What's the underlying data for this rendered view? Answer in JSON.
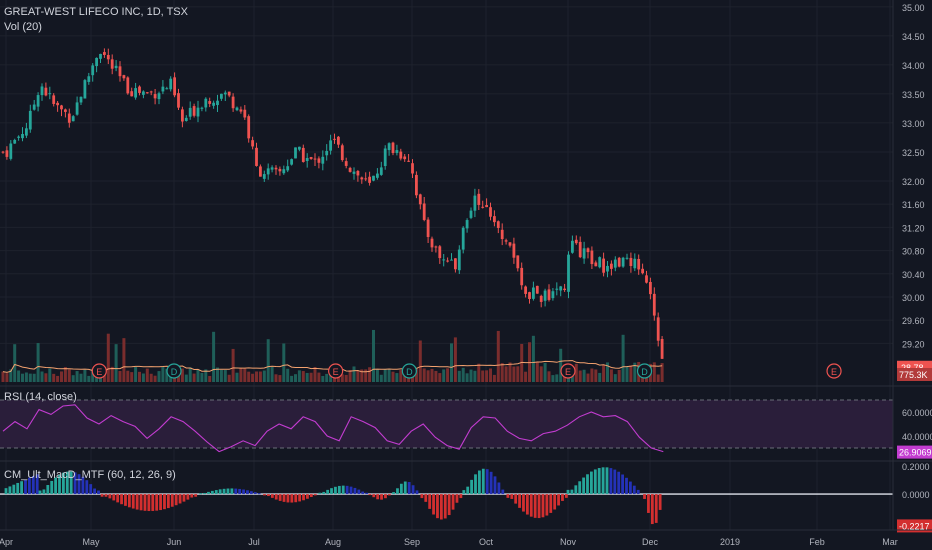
{
  "header": {
    "symbol_line": "GREAT-WEST LIFECO INC, 1D, TSX",
    "volume_label": "Vol (20)",
    "rsi_label": "RSI (14, close)",
    "macd_label": "CM_Ult_MacD_MTF (60, 12, 26, 9)"
  },
  "colors": {
    "background": "#131722",
    "up": "#26a69a",
    "down": "#ef5350",
    "rsi_line": "#c23cd0",
    "rsi_band": "#2a1e3a",
    "macd_up": "#26a69a",
    "macd_blue": "#2432b8",
    "macd_down": "#d32f2f",
    "vol_ma": "#f4a26f"
  },
  "chart_data": [
    {
      "type": "candlestick",
      "title": "GREAT-WEST LIFECO INC, 1D, TSX",
      "x_ticks": [
        "Apr",
        "May",
        "Jun",
        "Jul",
        "Aug",
        "Sep",
        "Oct",
        "Nov",
        "Dec",
        "2019",
        "Feb",
        "Mar"
      ],
      "y_ticks": [
        "35.00",
        "34.50",
        "34.00",
        "33.50",
        "33.00",
        "32.50",
        "32.00",
        "31.60",
        "31.20",
        "30.80",
        "30.40",
        "30.00",
        "29.60",
        "29.20"
      ],
      "ylim": [
        28.5,
        35.05
      ],
      "last_price": "28.78",
      "last_volume": "775.3K",
      "close_path": [
        {
          "date": "Apr 1",
          "close": 32.5
        },
        {
          "date": "Apr 9",
          "close": 33.0
        },
        {
          "date": "Apr 13",
          "close": 33.7
        },
        {
          "date": "Apr 18",
          "close": 33.3
        },
        {
          "date": "Apr 24",
          "close": 33.1
        },
        {
          "date": "Apr 30",
          "close": 33.8
        },
        {
          "date": "May 4",
          "close": 34.3
        },
        {
          "date": "May 8",
          "close": 34.0
        },
        {
          "date": "May 14",
          "close": 33.6
        },
        {
          "date": "May 22",
          "close": 33.5
        },
        {
          "date": "May 30",
          "close": 33.65
        },
        {
          "date": "Jun 4",
          "close": 33.0
        },
        {
          "date": "Jun 12",
          "close": 33.4
        },
        {
          "date": "Jun 20",
          "close": 33.5
        },
        {
          "date": "Jun 27",
          "close": 33.2
        },
        {
          "date": "Jul 2",
          "close": 32.2
        },
        {
          "date": "Jul 10",
          "close": 32.1
        },
        {
          "date": "Jul 17",
          "close": 32.5
        },
        {
          "date": "Jul 24",
          "close": 32.3
        },
        {
          "date": "Jul 31",
          "close": 32.7
        },
        {
          "date": "Aug 8",
          "close": 32.2
        },
        {
          "date": "Aug 15",
          "close": 31.9
        },
        {
          "date": "Aug 22",
          "close": 32.6
        },
        {
          "date": "Aug 30",
          "close": 32.4
        },
        {
          "date": "Sep 6",
          "close": 31.2
        },
        {
          "date": "Sep 12",
          "close": 30.7
        },
        {
          "date": "Sep 18",
          "close": 30.5
        },
        {
          "date": "Sep 24",
          "close": 31.5
        },
        {
          "date": "Sep 28",
          "close": 31.7
        },
        {
          "date": "Oct 4",
          "close": 31.4
        },
        {
          "date": "Oct 10",
          "close": 30.8
        },
        {
          "date": "Oct 16",
          "close": 30.1
        },
        {
          "date": "Oct 22",
          "close": 30.0
        },
        {
          "date": "Oct 30",
          "close": 30.2
        },
        {
          "date": "Nov 2",
          "close": 30.9
        },
        {
          "date": "Nov 8",
          "close": 30.7
        },
        {
          "date": "Nov 15",
          "close": 30.5
        },
        {
          "date": "Nov 22",
          "close": 30.7
        },
        {
          "date": "Nov 28",
          "close": 30.5
        },
        {
          "date": "Dec 3",
          "close": 29.6
        },
        {
          "date": "Dec 6",
          "close": 28.78
        }
      ],
      "event_markers": [
        {
          "date": "May 4",
          "label": "E"
        },
        {
          "date": "Jun 1",
          "label": "D"
        },
        {
          "date": "Aug 2",
          "label": "E"
        },
        {
          "date": "Aug 30",
          "label": "D"
        },
        {
          "date": "Oct 31",
          "label": "E"
        },
        {
          "date": "Nov 29",
          "label": "D"
        },
        {
          "date": "Feb 8",
          "label": "E"
        }
      ]
    },
    {
      "type": "line",
      "title": "RSI (14, close)",
      "y_ticks": [
        "60.0000",
        "40.0000"
      ],
      "last_value": "26.9069",
      "ylim": [
        20,
        80
      ],
      "band": [
        30,
        70
      ],
      "values": [
        44,
        52,
        46,
        62,
        58,
        65,
        66,
        55,
        50,
        57,
        52,
        48,
        38,
        46,
        56,
        52,
        44,
        35,
        27,
        31,
        36,
        32,
        44,
        50,
        46,
        56,
        52,
        40,
        36,
        56,
        52,
        47,
        36,
        33,
        44,
        50,
        39,
        32,
        29,
        47,
        56,
        55,
        44,
        38,
        36,
        42,
        44,
        49,
        56,
        60,
        56,
        57,
        52,
        39,
        30,
        27
      ]
    },
    {
      "type": "bar",
      "title": "CM_Ult_MacD_MTF (60, 12, 26, 9)",
      "y_ticks": [
        "0.2000",
        "0.0000"
      ],
      "last_value": "-0.2217",
      "ylim": [
        -0.24,
        0.22
      ],
      "segments": [
        {
          "from": "Apr 1",
          "to": "Apr 12",
          "shape": "rise",
          "peak": 0.14
        },
        {
          "from": "Apr 13",
          "to": "May 4",
          "shape": "hump",
          "peak": 0.16
        },
        {
          "from": "May 5",
          "to": "Jun 10",
          "shape": "trough",
          "peak": -0.12
        },
        {
          "from": "Jun 11",
          "to": "Jul 4",
          "shape": "hump",
          "peak": 0.04
        },
        {
          "from": "Jul 5",
          "to": "Jul 25",
          "shape": "trough",
          "peak": -0.06
        },
        {
          "from": "Jul 26",
          "to": "Aug 14",
          "shape": "hump",
          "peak": 0.06
        },
        {
          "from": "Aug 15",
          "to": "Aug 23",
          "shape": "trough",
          "peak": -0.04
        },
        {
          "from": "Aug 24",
          "to": "Sep 4",
          "shape": "hump",
          "peak": 0.09
        },
        {
          "from": "Sep 5",
          "to": "Sep 21",
          "shape": "trough",
          "peak": -0.18
        },
        {
          "from": "Sep 22",
          "to": "Oct 8",
          "shape": "hump",
          "peak": 0.18
        },
        {
          "from": "Oct 9",
          "to": "Oct 31",
          "shape": "trough",
          "peak": -0.17
        },
        {
          "from": "Nov 1",
          "to": "Nov 28",
          "shape": "hump",
          "peak": 0.19
        },
        {
          "from": "Nov 29",
          "to": "Dec 6",
          "shape": "trough",
          "peak": -0.22
        }
      ]
    }
  ]
}
